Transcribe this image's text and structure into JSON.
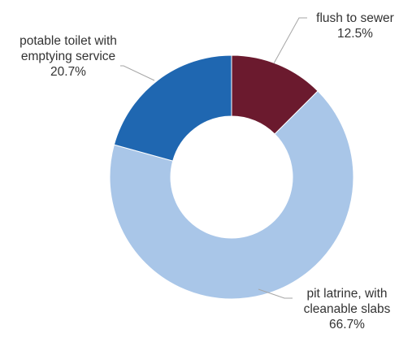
{
  "chart_data": {
    "type": "pie",
    "variant": "donut",
    "title": "",
    "series": [
      {
        "values": [
          12.5,
          66.7,
          20.7
        ],
        "labels": [
          {
            "lines": [
              "flush to sewer",
              "12.5%"
            ]
          },
          {
            "lines": [
              "pit latrine, with",
              "cleanable slabs",
              "66.7%"
            ]
          },
          {
            "lines": [
              "potable toilet with",
              "emptying service",
              "20.7%"
            ]
          }
        ],
        "colors": [
          "#6b1a2e",
          "#a9c6e8",
          "#1f67b1"
        ]
      }
    ],
    "legend": "none",
    "data_labels": "outside with leader lines"
  }
}
